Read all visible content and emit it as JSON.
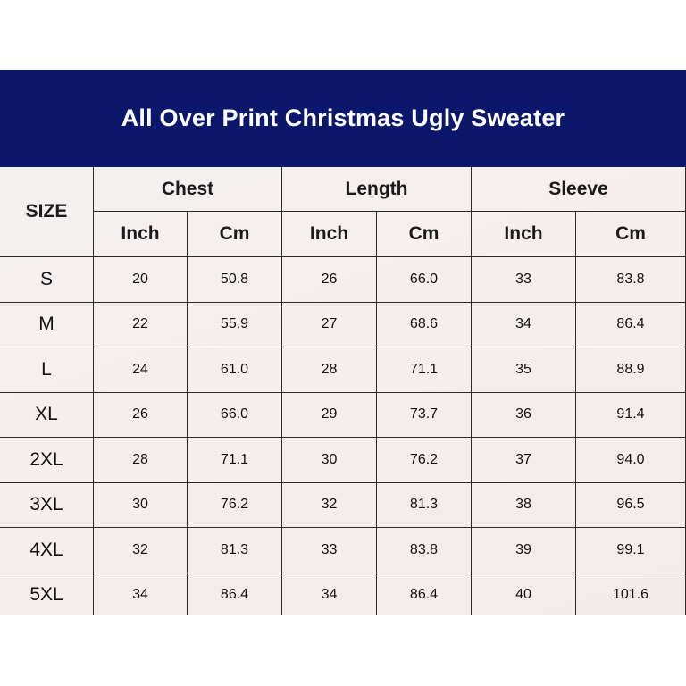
{
  "header": {
    "title": "All Over Print Christmas Ugly Sweater"
  },
  "table": {
    "size_header": "SIZE",
    "groups": [
      "Chest",
      "Length",
      "Sleeve"
    ],
    "units": [
      "Inch",
      "Cm",
      "Inch",
      "Cm",
      "Inch",
      "Cm"
    ],
    "rows": [
      [
        "S",
        "20",
        "50.8",
        "26",
        "66.0",
        "33",
        "83.8"
      ],
      [
        "M",
        "22",
        "55.9",
        "27",
        "68.6",
        "34",
        "86.4"
      ],
      [
        "L",
        "24",
        "61.0",
        "28",
        "71.1",
        "35",
        "88.9"
      ],
      [
        "XL",
        "26",
        "66.0",
        "29",
        "73.7",
        "36",
        "91.4"
      ],
      [
        "2XL",
        "28",
        "71.1",
        "30",
        "76.2",
        "37",
        "94.0"
      ],
      [
        "3XL",
        "30",
        "76.2",
        "32",
        "81.3",
        "38",
        "96.5"
      ],
      [
        "4XL",
        "32",
        "81.3",
        "33",
        "83.8",
        "39",
        "99.1"
      ],
      [
        "5XL",
        "34",
        "86.4",
        "34",
        "86.4",
        "40",
        "101.6"
      ]
    ]
  }
}
